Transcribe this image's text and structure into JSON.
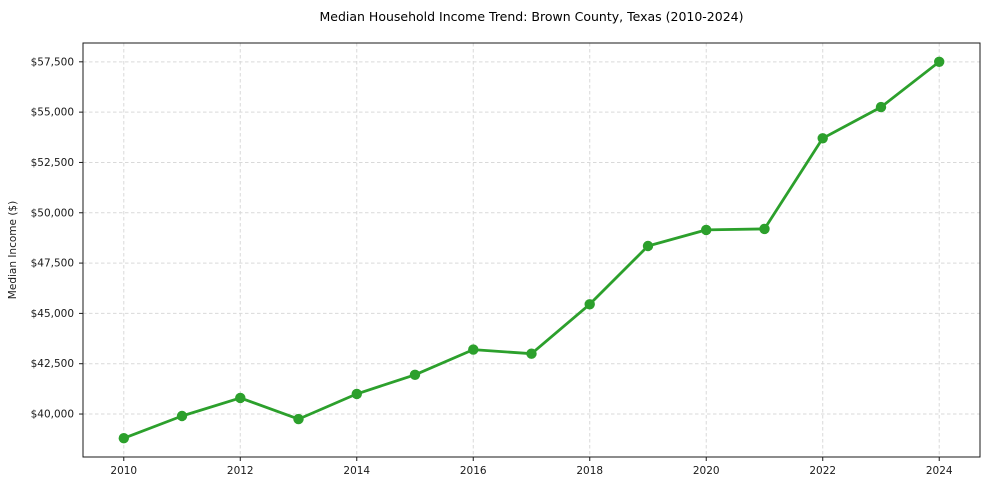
{
  "chart_data": {
    "type": "line",
    "title": "Median Household Income Trend: Brown County, Texas (2010-2024)",
    "xlabel": "",
    "ylabel": "Median Income ($)",
    "x": [
      2010,
      2011,
      2012,
      2013,
      2014,
      2015,
      2016,
      2017,
      2018,
      2019,
      2020,
      2021,
      2022,
      2023,
      2024
    ],
    "series": [
      {
        "name": "Median Household Income",
        "values": [
          38800,
          39900,
          40800,
          39750,
          41000,
          41950,
          43200,
          43000,
          45450,
          48350,
          49150,
          49200,
          53700,
          55250,
          57500
        ]
      }
    ],
    "x_ticks": {
      "values": [
        2010,
        2012,
        2014,
        2016,
        2018,
        2020,
        2022,
        2024
      ],
      "labels": [
        "2010",
        "2012",
        "2014",
        "2016",
        "2018",
        "2020",
        "2022",
        "2024"
      ]
    },
    "y_ticks": {
      "values": [
        40000,
        42500,
        45000,
        47500,
        50000,
        52500,
        55000,
        57500
      ],
      "labels": [
        "$40,000",
        "$42,500",
        "$45,000",
        "$47,500",
        "$50,000",
        "$52,500",
        "$55,000",
        "$57,500"
      ]
    },
    "xlim": [
      2009.3,
      2024.7
    ],
    "ylim": [
      37865,
      58435
    ],
    "grid": true,
    "grid_style": "dashed",
    "legend": false,
    "marker": "o",
    "colors": {
      "line": "#2ca02c",
      "marker": "#2ca02c",
      "grid": "#d9d9d9",
      "spine": "#1a1a1a",
      "text": "#1a1a1a",
      "background": "#ffffff"
    }
  }
}
